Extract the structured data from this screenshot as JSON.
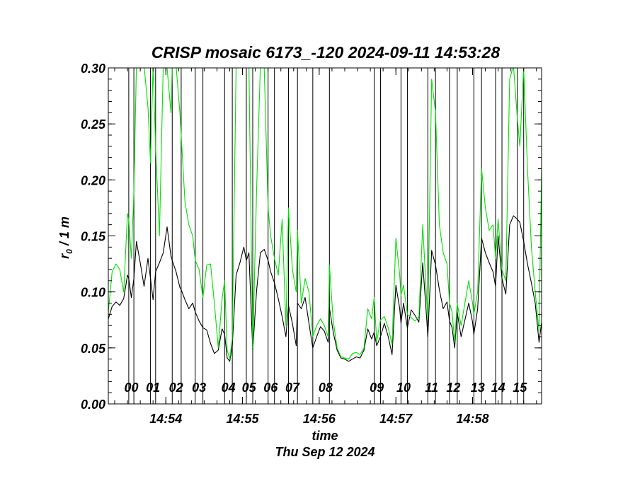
{
  "chart_data": {
    "type": "line",
    "title": "CRISP mosaic 6173_-120 2024-09-11 14:53:28",
    "xlabel": "time",
    "xlabel2": "Thu Sep 12 2024",
    "ylabel_main": "r",
    "ylabel_sub": "0",
    "ylabel_rest": " / 1 m",
    "ylim": [
      0.0,
      0.3
    ],
    "xlim_seconds_of_day": [
      53595.0,
      53934.0
    ],
    "x_ticks": [
      {
        "t": 53640,
        "label": "14:54"
      },
      {
        "t": 53700,
        "label": "14:55"
      },
      {
        "t": 53760,
        "label": "14:56"
      },
      {
        "t": 53820,
        "label": "14:57"
      },
      {
        "t": 53880,
        "label": "14:58"
      }
    ],
    "y_ticks": [
      {
        "v": 0.0,
        "label": "0.00"
      },
      {
        "v": 0.05,
        "label": "0.05"
      },
      {
        "v": 0.1,
        "label": "0.10"
      },
      {
        "v": 0.15,
        "label": "0.15"
      },
      {
        "v": 0.2,
        "label": "0.20"
      },
      {
        "v": 0.25,
        "label": "0.25"
      },
      {
        "v": 0.3,
        "label": "0.30"
      }
    ],
    "scan_boundaries_seconds_of_day": [
      53611,
      53615,
      53628,
      53632,
      53645,
      53652,
      53663,
      53669,
      53686,
      53692,
      53703,
      53708,
      53720,
      53725,
      53736,
      53743,
      53755,
      53768,
      53803,
      53808,
      53824,
      53829,
      53845,
      53851,
      53862,
      53868,
      53881,
      53887,
      53898,
      53903,
      53915,
      53920
    ],
    "scan_labels": [
      {
        "label": "00",
        "t": 53613
      },
      {
        "label": "01",
        "t": 53630
      },
      {
        "label": "02",
        "t": 53648
      },
      {
        "label": "03",
        "t": 53666
      },
      {
        "label": "04",
        "t": 53689
      },
      {
        "label": "05",
        "t": 53705
      },
      {
        "label": "06",
        "t": 53722
      },
      {
        "label": "07",
        "t": 53739
      },
      {
        "label": "08",
        "t": 53765
      },
      {
        "label": "09",
        "t": 53805
      },
      {
        "label": "10",
        "t": 53826
      },
      {
        "label": "11",
        "t": 53848
      },
      {
        "label": "12",
        "t": 53865
      },
      {
        "label": "13",
        "t": 53884
      },
      {
        "label": "14",
        "t": 53900
      },
      {
        "label": "15",
        "t": 53917
      }
    ],
    "series": [
      {
        "color": "#000000",
        "x": [
          53595,
          53598,
          53601,
          53604,
          53607,
          53610,
          53611,
          53613,
          53615,
          53617,
          53620,
          53623,
          53626,
          53628,
          53630,
          53632,
          53635,
          53638,
          53641,
          53644,
          53645,
          53648,
          53651,
          53652,
          53655,
          53658,
          53661,
          53663,
          53666,
          53669,
          53672,
          53675,
          53678,
          53681,
          53684,
          53686,
          53688,
          53690,
          53692,
          53695,
          53698,
          53701,
          53703,
          53705,
          53708,
          53711,
          53714,
          53717,
          53720,
          53722,
          53725,
          53728,
          53731,
          53734,
          53736,
          53739,
          53742,
          53743,
          53746,
          53749,
          53752,
          53755,
          53758,
          53761,
          53764,
          53767,
          53768,
          53771,
          53774,
          53777,
          53780,
          53783,
          53786,
          53789,
          53792,
          53795,
          53798,
          53801,
          53803,
          53805,
          53808,
          53811,
          53814,
          53817,
          53820,
          53823,
          53824,
          53826,
          53829,
          53832,
          53835,
          53838,
          53841,
          53844,
          53845,
          53848,
          53851,
          53854,
          53857,
          53860,
          53862,
          53864,
          53866,
          53868,
          53871,
          53874,
          53877,
          53880,
          53881,
          53884,
          53887,
          53890,
          53893,
          53896,
          53898,
          53900,
          53903,
          53906,
          53909,
          53912,
          53915,
          53917,
          53920,
          53923,
          53926,
          53929,
          53932,
          53934
        ],
        "values": [
          0.076,
          0.087,
          0.091,
          0.088,
          0.094,
          0.115,
          0.112,
          0.095,
          0.112,
          0.145,
          0.126,
          0.105,
          0.13,
          0.112,
          0.093,
          0.118,
          0.126,
          0.135,
          0.158,
          0.132,
          0.128,
          0.118,
          0.104,
          0.102,
          0.093,
          0.085,
          0.09,
          0.082,
          0.074,
          0.068,
          0.066,
          0.054,
          0.045,
          0.048,
          0.067,
          0.062,
          0.041,
          0.038,
          0.052,
          0.115,
          0.126,
          0.14,
          0.128,
          0.135,
          0.048,
          0.101,
          0.135,
          0.138,
          0.128,
          0.118,
          0.108,
          0.094,
          0.078,
          0.06,
          0.088,
          0.072,
          0.052,
          0.09,
          0.085,
          0.095,
          0.072,
          0.05,
          0.06,
          0.069,
          0.065,
          0.055,
          0.086,
          0.064,
          0.048,
          0.041,
          0.04,
          0.038,
          0.04,
          0.042,
          0.041,
          0.048,
          0.067,
          0.058,
          0.064,
          0.052,
          0.06,
          0.072,
          0.06,
          0.044,
          0.106,
          0.085,
          0.072,
          0.09,
          0.068,
          0.084,
          0.079,
          0.073,
          0.126,
          0.078,
          0.06,
          0.137,
          0.124,
          0.102,
          0.085,
          0.091,
          0.074,
          0.068,
          0.05,
          0.082,
          0.06,
          0.075,
          0.09,
          0.073,
          0.062,
          0.085,
          0.148,
          0.135,
          0.126,
          0.118,
          0.105,
          0.15,
          0.112,
          0.098,
          0.16,
          0.168,
          0.165,
          0.162,
          0.145,
          0.125,
          0.108,
          0.09,
          0.055,
          0.073
        ]
      },
      {
        "color": "#00e000",
        "x": [
          53595,
          53598,
          53601,
          53604,
          53607,
          53610,
          53611,
          53613,
          53615,
          53617,
          53620,
          53623,
          53626,
          53628,
          53630,
          53632,
          53635,
          53638,
          53641,
          53644,
          53645,
          53648,
          53651,
          53652,
          53655,
          53658,
          53661,
          53663,
          53666,
          53669,
          53672,
          53675,
          53678,
          53681,
          53684,
          53686,
          53688,
          53690,
          53692,
          53695,
          53698,
          53701,
          53703,
          53705,
          53708,
          53711,
          53714,
          53717,
          53720,
          53722,
          53725,
          53728,
          53731,
          53734,
          53736,
          53739,
          53742,
          53743,
          53746,
          53749,
          53752,
          53755,
          53758,
          53761,
          53764,
          53767,
          53768,
          53771,
          53774,
          53777,
          53780,
          53783,
          53786,
          53789,
          53792,
          53795,
          53798,
          53801,
          53803,
          53805,
          53808,
          53811,
          53814,
          53817,
          53820,
          53823,
          53824,
          53826,
          53829,
          53832,
          53835,
          53838,
          53841,
          53844,
          53845,
          53848,
          53851,
          53854,
          53857,
          53860,
          53862,
          53864,
          53866,
          53868,
          53871,
          53874,
          53877,
          53880,
          53881,
          53884,
          53887,
          53890,
          53893,
          53896,
          53898,
          53900,
          53903,
          53906,
          53909,
          53912,
          53915,
          53917,
          53920,
          53923,
          53926,
          53929,
          53932,
          53934
        ],
        "values": [
          0.082,
          0.118,
          0.125,
          0.12,
          0.1,
          0.17,
          0.165,
          0.13,
          0.19,
          0.33,
          0.3,
          0.33,
          0.265,
          0.215,
          0.34,
          0.23,
          0.15,
          0.34,
          0.3,
          0.26,
          0.31,
          0.36,
          0.26,
          0.24,
          0.18,
          0.16,
          0.15,
          0.128,
          0.12,
          0.095,
          0.124,
          0.125,
          0.09,
          0.05,
          0.094,
          0.11,
          0.048,
          0.04,
          0.058,
          0.3,
          0.33,
          0.33,
          0.3,
          0.32,
          0.05,
          0.19,
          0.35,
          0.3,
          0.175,
          0.15,
          0.13,
          0.115,
          0.165,
          0.07,
          0.175,
          0.12,
          0.1,
          0.155,
          0.09,
          0.112,
          0.1,
          0.06,
          0.07,
          0.076,
          0.07,
          0.06,
          0.124,
          0.074,
          0.05,
          0.042,
          0.041,
          0.04,
          0.045,
          0.046,
          0.044,
          0.05,
          0.085,
          0.076,
          0.095,
          0.056,
          0.075,
          0.078,
          0.068,
          0.053,
          0.148,
          0.115,
          0.097,
          0.106,
          0.08,
          0.077,
          0.074,
          0.078,
          0.16,
          0.095,
          0.075,
          0.29,
          0.26,
          0.16,
          0.135,
          0.125,
          0.09,
          0.082,
          0.055,
          0.09,
          0.07,
          0.09,
          0.11,
          0.09,
          0.08,
          0.1,
          0.21,
          0.175,
          0.155,
          0.16,
          0.13,
          0.165,
          0.12,
          0.11,
          0.29,
          0.34,
          0.255,
          0.23,
          0.3,
          0.21,
          0.14,
          0.1,
          0.065,
          0.21
        ]
      }
    ]
  }
}
